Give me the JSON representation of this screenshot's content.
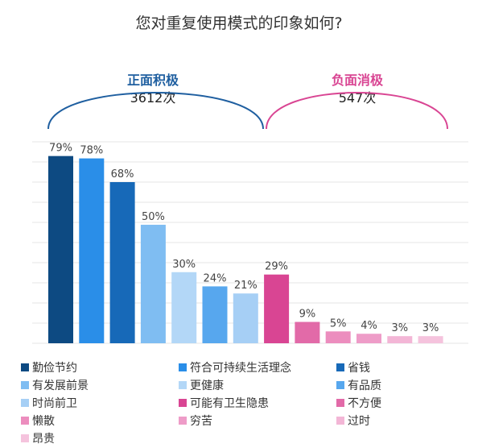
{
  "chart_data": {
    "type": "bar",
    "title": "您对重复使用模式的印象如何?",
    "groups": [
      {
        "name": "正面积极",
        "count": "3612次",
        "color": "#1f5fa0"
      },
      {
        "name": "负面消极",
        "count": "547次",
        "color": "#d94593"
      }
    ],
    "categories": [
      "勤俭节约",
      "符合可持续生活理念",
      "省钱",
      "有发展前景",
      "更健康",
      "有品质",
      "时尚前卫",
      "可能有卫生隐患",
      "不方便",
      "懒散",
      "穷苦",
      "过时",
      "昂贵"
    ],
    "values": [
      79,
      78,
      68,
      50,
      30,
      24,
      21,
      29,
      9,
      5,
      4,
      3,
      3
    ],
    "value_labels": [
      "79%",
      "78%",
      "68%",
      "50%",
      "30%",
      "24%",
      "21%",
      "29%",
      "9%",
      "5%",
      "4%",
      "3%",
      "3%"
    ],
    "colors": [
      "#0d4a82",
      "#2a8ee8",
      "#1769b8",
      "#7fbdf2",
      "#b3d7f7",
      "#57a7ee",
      "#a6cff5",
      "#d94593",
      "#e26aa8",
      "#ec8dbe",
      "#ee9cc8",
      "#f3b6d6",
      "#f5c3dd"
    ],
    "ylim": [
      0,
      100
    ],
    "grid": true,
    "legend_position": "bottom"
  }
}
